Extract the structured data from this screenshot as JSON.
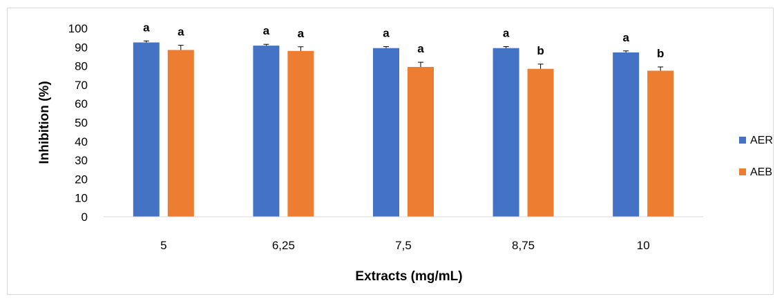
{
  "chart_data": {
    "type": "bar",
    "xlabel": "Extracts (mg/mL)",
    "ylabel": "Inhibition (%)",
    "ylim": [
      0,
      100
    ],
    "yticks": [
      0,
      10,
      20,
      30,
      40,
      50,
      60,
      70,
      80,
      90,
      100
    ],
    "categories": [
      "5",
      "6,25",
      "7,5",
      "8,75",
      "10"
    ],
    "grid": false,
    "legend_position": "right",
    "series": [
      {
        "name": "AER",
        "color": "#4472C4",
        "values": [
          92.5,
          90.8,
          89.5,
          89.5,
          87.2
        ],
        "errors": [
          0.8,
          0.7,
          0.8,
          0.8,
          0.8
        ],
        "significance": [
          "a",
          "a",
          "a",
          "a",
          "a"
        ]
      },
      {
        "name": "AEB",
        "color": "#ED7D31",
        "values": [
          88.5,
          88.0,
          79.5,
          78.5,
          77.5
        ],
        "errors": [
          2.5,
          2.2,
          2.5,
          2.5,
          2.0
        ],
        "significance": [
          "a",
          "a",
          "a",
          "b",
          "b"
        ]
      }
    ]
  }
}
